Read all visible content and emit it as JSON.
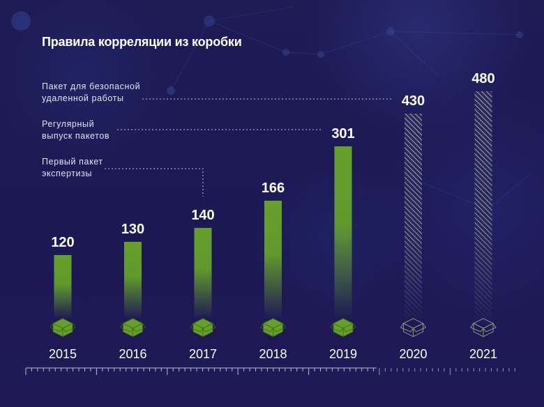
{
  "chart_data": {
    "type": "bar",
    "title": "Правила корреляции из коробки",
    "xlabel": "",
    "ylabel": "",
    "categories": [
      "2015",
      "2016",
      "2017",
      "2018",
      "2019",
      "2020",
      "2021"
    ],
    "values": [
      120,
      130,
      140,
      166,
      301,
      430,
      480
    ],
    "value_labels": [
      "120",
      "130",
      "140",
      "166",
      "301",
      "430",
      "480"
    ],
    "bar_styles": [
      "solid",
      "solid",
      "solid",
      "solid",
      "solid",
      "hatched",
      "hatched"
    ],
    "ylim": [
      0,
      480
    ],
    "grid": false,
    "legend": "none",
    "annotations": [
      {
        "text_lines": [
          "Пакет для безопасной",
          "удаленной работы"
        ],
        "target": "2020"
      },
      {
        "text_lines": [
          "Регулярный",
          "выпуск пакетов"
        ],
        "target": "2019"
      },
      {
        "text_lines": [
          "Первый пакет",
          "экспертизы"
        ],
        "target": "2017"
      }
    ],
    "icons": [
      "box-icon",
      "box-icon",
      "box-icon",
      "box-icon",
      "box-icon",
      "box-outline-icon",
      "box-outline-icon"
    ]
  },
  "colors": {
    "background": "#1d1a52",
    "bar": "#64a02a",
    "bar_outline_icon": "#7f8a70",
    "text": "#ffffff",
    "annotation_text": "#e6e6f2",
    "ruler": "#b9b8dc"
  }
}
